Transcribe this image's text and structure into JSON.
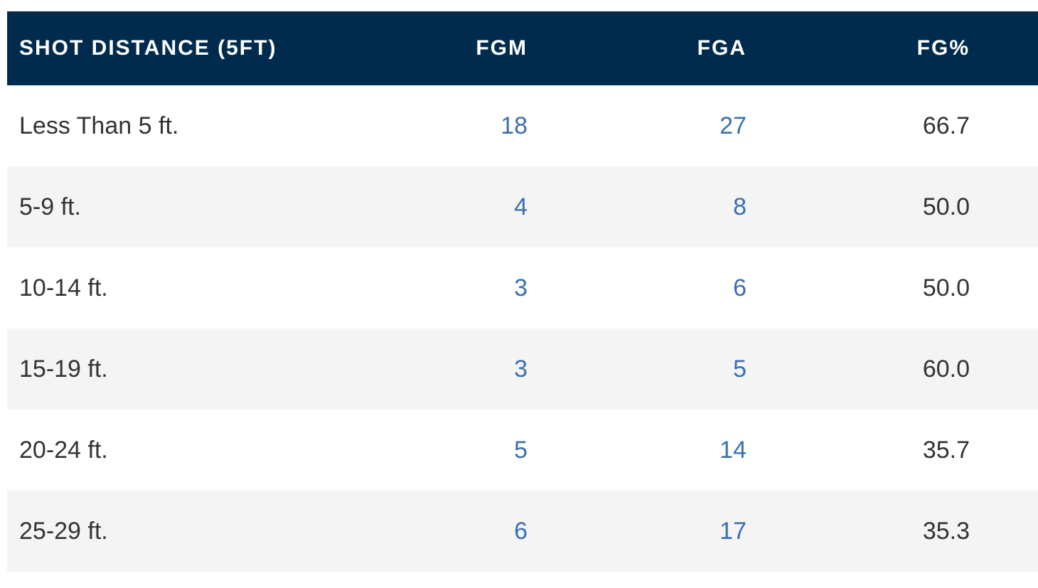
{
  "table": {
    "headers": [
      "SHOT DISTANCE (5FT)",
      "FGM",
      "FGA",
      "FG%"
    ],
    "rows": [
      [
        "Less Than 5 ft.",
        "18",
        "27",
        "66.7"
      ],
      [
        "5-9 ft.",
        "4",
        "8",
        "50.0"
      ],
      [
        "10-14 ft.",
        "3",
        "6",
        "50.0"
      ],
      [
        "15-19 ft.",
        "3",
        "5",
        "60.0"
      ],
      [
        "20-24 ft.",
        "5",
        "14",
        "35.7"
      ],
      [
        "25-29 ft.",
        "6",
        "17",
        "35.3"
      ]
    ]
  },
  "colors": {
    "header_bg": "#002b4e",
    "header_text": "#ffffff",
    "link_value": "#3a6fb0",
    "text": "#333333",
    "stripe": "#f4f4f4"
  }
}
